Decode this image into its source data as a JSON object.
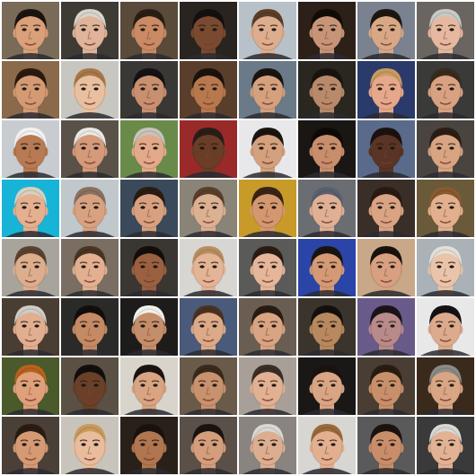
{
  "grid": {
    "rows": 8,
    "cols": 8,
    "tiles": [
      {
        "bg": "#7a6a58",
        "skin": "#d9a07a",
        "hair": "#1c140e"
      },
      {
        "bg": "#3e3a34",
        "skin": "#e0b49a",
        "hair": "#d8d4cc"
      },
      {
        "bg": "#5a4a3a",
        "skin": "#c98a64",
        "hair": "#2a1e14"
      },
      {
        "bg": "#2a2420",
        "skin": "#7a4a30",
        "hair": "#141010"
      },
      {
        "bg": "#b8c0c8",
        "skin": "#dcae8e",
        "hair": "#5a3e28"
      },
      {
        "bg": "#2c2018",
        "skin": "#c89478",
        "hair": "#120c08"
      },
      {
        "bg": "#7a8290",
        "skin": "#d8a886",
        "hair": "#1e1610"
      },
      {
        "bg": "#6a6560",
        "skin": "#e6b8a0",
        "hair": "#c8c8c4"
      },
      {
        "bg": "#8a6a4a",
        "skin": "#d49a74",
        "hair": "#2a1a10"
      },
      {
        "bg": "#c8c6c0",
        "skin": "#e8c0a0",
        "hair": "#a8784a"
      },
      {
        "bg": "#3a3834",
        "skin": "#c89070",
        "hair": "#141212"
      },
      {
        "bg": "#5a3e2c",
        "skin": "#b8784e",
        "hair": "#1a120c"
      },
      {
        "bg": "#6a7a88",
        "skin": "#d4a07e",
        "hair": "#181410"
      },
      {
        "bg": "#2a2620",
        "skin": "#b88a6a",
        "hair": "#1a1410"
      },
      {
        "bg": "#2a3a6a",
        "skin": "#e6a88a",
        "hair": "#c89a60"
      },
      {
        "bg": "#3a3a38",
        "skin": "#d8a282",
        "hair": "#3a2a1e"
      },
      {
        "bg": "#c8ccd0",
        "skin": "#b87a52",
        "hair": "#f2f2f2"
      },
      {
        "bg": "#5a5248",
        "skin": "#d49a7a",
        "hair": "#e8e8e4"
      },
      {
        "bg": "#6a8a4a",
        "skin": "#e2aa8a",
        "hair": "#c8c4bc"
      },
      {
        "bg": "#9a2a2a",
        "skin": "#6a3e26",
        "hair": "#2a1e18"
      },
      {
        "bg": "#e8e8ea",
        "skin": "#d4a07e",
        "hair": "#1a1410"
      },
      {
        "bg": "#1a1614",
        "skin": "#c88e6c",
        "hair": "#0e0a08"
      },
      {
        "bg": "#5a6a8a",
        "skin": "#5a3424",
        "hair": "#1a1210"
      },
      {
        "bg": "#4a4440",
        "skin": "#d8a482",
        "hair": "#2a1e14"
      },
      {
        "bg": "#18b4d8",
        "skin": "#e4b090",
        "hair": "#d8d0c0"
      },
      {
        "bg": "#c0c8cc",
        "skin": "#d8a282",
        "hair": "#8a7060"
      },
      {
        "bg": "#3a4a5a",
        "skin": "#d8a080",
        "hair": "#2a1c12"
      },
      {
        "bg": "#8a8478",
        "skin": "#dcb092",
        "hair": "#5a3e2c"
      },
      {
        "bg": "#c89a2a",
        "skin": "#d49870",
        "hair": "#3a2416"
      },
      {
        "bg": "#6a6e72",
        "skin": "#e0b094",
        "hair": "#5a6070"
      },
      {
        "bg": "#3a2e28",
        "skin": "#d8a484",
        "hair": "#2a1a12"
      },
      {
        "bg": "#6a5a3a",
        "skin": "#e2b08e",
        "hair": "#8a5a30"
      },
      {
        "bg": "#a8a49c",
        "skin": "#dcae8e",
        "hair": "#5a4230"
      },
      {
        "bg": "#7a6e62",
        "skin": "#e2b090",
        "hair": "#4a3422"
      },
      {
        "bg": "#3a3632",
        "skin": "#9a6040",
        "hair": "#140e0a"
      },
      {
        "bg": "#d8d6d2",
        "skin": "#e4b496",
        "hair": "#b88e60"
      },
      {
        "bg": "#5a5a58",
        "skin": "#e6b69a",
        "hair": "#2a1c12"
      },
      {
        "bg": "#2a44a8",
        "skin": "#d49a76",
        "hair": "#1a1410"
      },
      {
        "bg": "#c8a888",
        "skin": "#d8a080",
        "hair": "#1a120c"
      },
      {
        "bg": "#aab2b8",
        "skin": "#eac4aa",
        "hair": "#e4e0d8"
      },
      {
        "bg": "#4a3e32",
        "skin": "#e2ae90",
        "hair": "#cfccc6"
      },
      {
        "bg": "#2a2a28",
        "skin": "#c48a64",
        "hair": "#120e0c"
      },
      {
        "bg": "#1e1c1a",
        "skin": "#c48e6a",
        "hair": "#f0f0ec"
      },
      {
        "bg": "#4a5a7a",
        "skin": "#dcaa88",
        "hair": "#4a3220"
      },
      {
        "bg": "#6a5e52",
        "skin": "#d8a482",
        "hair": "#2a1c12"
      },
      {
        "bg": "#3a342c",
        "skin": "#b8885e",
        "hair": "#141010"
      },
      {
        "bg": "#6a5a8a",
        "skin": "#b88a8a",
        "hair": "#1a1418"
      },
      {
        "bg": "#e8e8e8",
        "skin": "#dcaa8c",
        "hair": "#141212"
      },
      {
        "bg": "#4a5a2a",
        "skin": "#e0a07a",
        "hair": "#b8621e"
      },
      {
        "bg": "#5a5044",
        "skin": "#6a4028",
        "hair": "#120e0c"
      },
      {
        "bg": "#d8d4cc",
        "skin": "#d8a482",
        "hair": "#1a1410"
      },
      {
        "bg": "#6a5a4a",
        "skin": "#c8926e",
        "hair": "#3a2a1c"
      },
      {
        "bg": "#a8a098",
        "skin": "#e2b092",
        "hair": "#3a2e26"
      },
      {
        "bg": "#1a1816",
        "skin": "#d8a684",
        "hair": "#1a1410"
      },
      {
        "bg": "#4a3e34",
        "skin": "#c8906a",
        "hair": "#2a1c12"
      },
      {
        "bg": "#3a2a1c",
        "skin": "#d8a684",
        "hair": "#8a8a86"
      },
      {
        "bg": "#4a4038",
        "skin": "#d49a74",
        "hair": "#2a1c12"
      },
      {
        "bg": "#c8c4bc",
        "skin": "#e8bc9c",
        "hair": "#c89a5a"
      },
      {
        "bg": "#2a201a",
        "skin": "#b07650",
        "hair": "#1a1210"
      },
      {
        "bg": "#5a5048",
        "skin": "#d49e7c",
        "hair": "#1a1410"
      },
      {
        "bg": "#8a8480",
        "skin": "#dcae90",
        "hair": "#d8d8d4"
      },
      {
        "bg": "#d8d6d2",
        "skin": "#e2b090",
        "hair": "#9a6a3a"
      },
      {
        "bg": "#5a5a5a",
        "skin": "#c88e6a",
        "hair": "#1a1410"
      },
      {
        "bg": "#3a3a3a",
        "skin": "#e2b294",
        "hair": "#d8d8d4"
      }
    ]
  }
}
